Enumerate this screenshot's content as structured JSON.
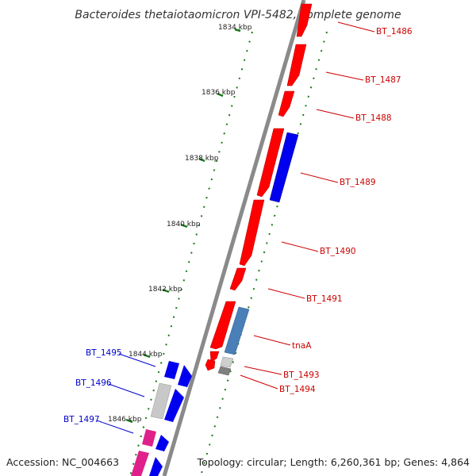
{
  "title": "Bacteroides thetaiotaomicron VPI-5482, complete genome",
  "accession": "Accession: NC_004663",
  "topology": "Topology: circular; Length: 6,260,361 bp; Genes: 4,864",
  "colors": {
    "backbone": "#808080",
    "ticks": "#1a7a1a",
    "forward_gene": "#ff0000",
    "reverse_gene": "#0000ff",
    "steelblue_gene": "#4a7fb8",
    "grey_gene": "#b0b0b0",
    "magenta_gene": "#e0208a",
    "label_red": "#cc0000",
    "label_blue": "#0000cc"
  },
  "ruler": [
    "1834 kbp",
    "1836 kbp",
    "1838 kbp",
    "1840 kbp",
    "1842 kbp",
    "1844 kbp",
    "1846 kbp"
  ],
  "genes": [
    {
      "name": "BT_1486",
      "strand": "forward",
      "color": "red"
    },
    {
      "name": "BT_1487",
      "strand": "forward",
      "color": "red"
    },
    {
      "name": "BT_1488",
      "strand": "forward",
      "color": "red"
    },
    {
      "name": "BT_1489",
      "strand": "reverse",
      "color": "red"
    },
    {
      "name": "BT_1490",
      "strand": "forward",
      "color": "red"
    },
    {
      "name": "BT_1491",
      "strand": "forward",
      "color": "red"
    },
    {
      "name": "tnaA",
      "strand": "reverse",
      "color": "red"
    },
    {
      "name": "BT_1493",
      "strand": "forward",
      "color": "red"
    },
    {
      "name": "BT_1494",
      "strand": "forward",
      "color": "red"
    },
    {
      "name": "BT_1495",
      "strand": "reverse",
      "color": "blue"
    },
    {
      "name": "BT_1496",
      "strand": "reverse",
      "color": "blue"
    },
    {
      "name": "BT_1497",
      "strand": "reverse",
      "color": "blue"
    }
  ]
}
